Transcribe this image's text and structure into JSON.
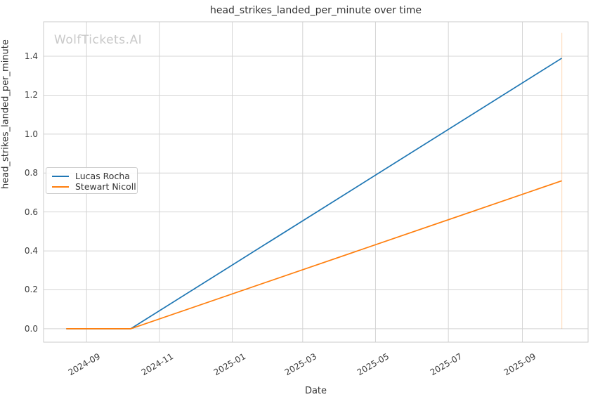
{
  "watermark": "WolfTickets.AI",
  "chart_data": {
    "type": "line",
    "title": "head_strikes_landed_per_minute over time",
    "xlabel": "Date",
    "ylabel": "head_strikes_landed_per_minute",
    "grid": true,
    "legend_position": "center-left",
    "x_range_dates": [
      "2024-07-27",
      "2025-10-26"
    ],
    "ylim": [
      -0.069,
      1.577
    ],
    "x_ticks": [
      {
        "date": "2024-09-01",
        "label": "2024-09"
      },
      {
        "date": "2024-11-01",
        "label": "2024-11"
      },
      {
        "date": "2025-01-01",
        "label": "2025-01"
      },
      {
        "date": "2025-03-01",
        "label": "2025-03"
      },
      {
        "date": "2025-05-01",
        "label": "2025-05"
      },
      {
        "date": "2025-07-01",
        "label": "2025-07"
      },
      {
        "date": "2025-09-01",
        "label": "2025-09"
      }
    ],
    "y_ticks": [
      0.0,
      0.2,
      0.4,
      0.6,
      0.8,
      1.0,
      1.2,
      1.4
    ],
    "series": [
      {
        "name": "Lucas Rocha",
        "color": "#1f77b4",
        "points": [
          {
            "date": "2024-08-15",
            "value": 0.0
          },
          {
            "date": "2024-10-08",
            "value": 0.0
          },
          {
            "date": "2025-10-04",
            "value": 1.39
          }
        ]
      },
      {
        "name": "Stewart Nicoll",
        "color": "#ff7f0e",
        "points": [
          {
            "date": "2024-08-15",
            "value": 0.0
          },
          {
            "date": "2024-10-08",
            "value": 0.0
          },
          {
            "date": "2025-10-04",
            "value": 0.76
          }
        ]
      }
    ],
    "annotations": [
      {
        "type": "vline",
        "date": "2025-10-04",
        "color": "#ff7f0e",
        "opacity": 0.25,
        "y_from": 0.0,
        "y_to": 1.52
      }
    ],
    "grid_color": "#d4d4d4",
    "spine_color": "#cbcbcb"
  }
}
